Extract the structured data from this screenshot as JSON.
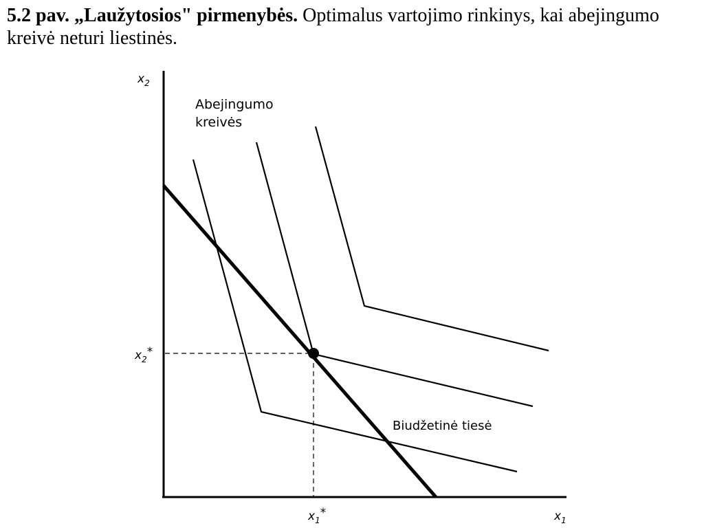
{
  "caption": {
    "lead": "5.2 pav. „Laužytosios\" pirmenybės.",
    "text": " Optimalus vartojimo rinkinys, kai abejingumo kreivė neturi liestinės."
  },
  "diagram": {
    "axis_x_label": "x",
    "axis_x_sub": "1",
    "axis_y_label": "x",
    "axis_y_sub": "2",
    "curves_label_line1": "Abejingumo",
    "curves_label_line2": "kreivės",
    "budget_label": "Biudžetinė tiesė",
    "optimum_x_label": "x",
    "optimum_x_sub": "1",
    "optimum_x_star": "*",
    "optimum_y_label": "x",
    "optimum_y_sub": "2",
    "optimum_y_star": "*"
  }
}
